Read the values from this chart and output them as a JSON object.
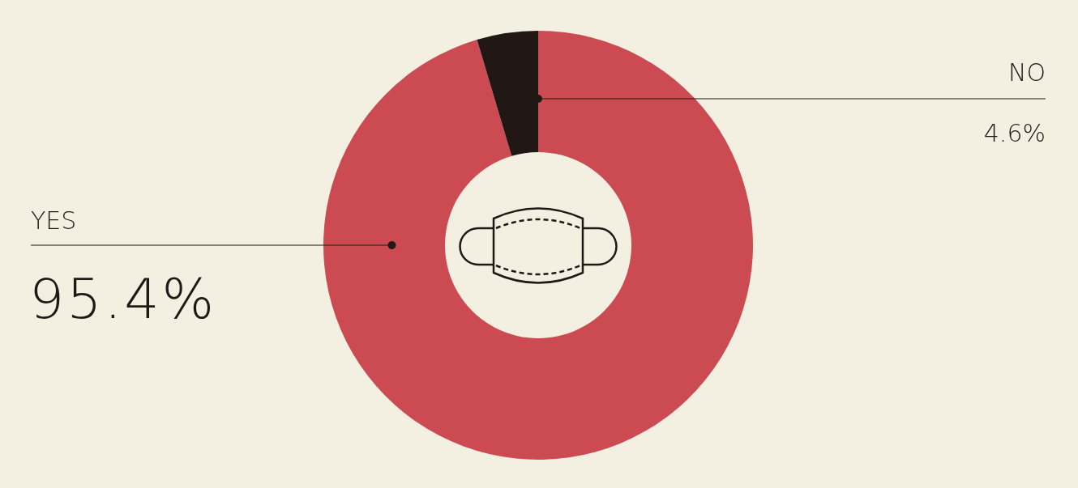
{
  "chart_data": {
    "type": "donut",
    "categories": [
      "YES",
      "NO"
    ],
    "values": [
      95.4,
      4.6
    ],
    "colors": [
      "#cc4b53",
      "#211815"
    ],
    "value_labels": [
      "95.4%",
      "4.6%"
    ]
  }
}
